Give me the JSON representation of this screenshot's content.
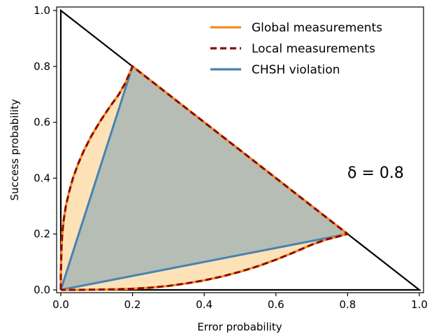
{
  "chart_data": {
    "type": "line",
    "xlabel": "Error probability",
    "ylabel": "Success probability",
    "xlim": [
      0,
      1
    ],
    "ylim": [
      0,
      1
    ],
    "xticks": [
      "0.0",
      "0.2",
      "0.4",
      "0.6",
      "0.8",
      "1.0"
    ],
    "yticks": [
      "0.0",
      "0.2",
      "0.4",
      "0.6",
      "0.8",
      "1.0"
    ],
    "grid": false,
    "legend_position": "top-right",
    "annotation": "δ = 0.8",
    "boundary_triangle": {
      "x": [
        0,
        1,
        0,
        0
      ],
      "y": [
        0,
        0,
        1,
        0
      ]
    },
    "series": [
      {
        "name": "Global measurements",
        "style": "solid",
        "color": "#f28e1c",
        "fill": "#fde2b8",
        "points": [
          [
            0.0,
            0.0
          ],
          [
            0.0,
            0.05
          ],
          [
            0.001,
            0.1
          ],
          [
            0.002,
            0.15
          ],
          [
            0.004,
            0.2
          ],
          [
            0.008,
            0.25
          ],
          [
            0.014,
            0.3
          ],
          [
            0.023,
            0.35
          ],
          [
            0.034,
            0.4
          ],
          [
            0.048,
            0.45
          ],
          [
            0.065,
            0.5
          ],
          [
            0.085,
            0.55
          ],
          [
            0.108,
            0.6
          ],
          [
            0.134,
            0.65
          ],
          [
            0.162,
            0.7
          ],
          [
            0.18,
            0.74
          ],
          [
            0.2,
            0.8
          ],
          [
            0.8,
            0.2
          ],
          [
            0.74,
            0.18
          ],
          [
            0.7,
            0.162
          ],
          [
            0.65,
            0.134
          ],
          [
            0.6,
            0.108
          ],
          [
            0.55,
            0.085
          ],
          [
            0.5,
            0.065
          ],
          [
            0.45,
            0.048
          ],
          [
            0.4,
            0.034
          ],
          [
            0.35,
            0.023
          ],
          [
            0.3,
            0.014
          ],
          [
            0.25,
            0.008
          ],
          [
            0.2,
            0.004
          ],
          [
            0.15,
            0.002
          ],
          [
            0.1,
            0.001
          ],
          [
            0.05,
            0.0
          ],
          [
            0.0,
            0.0
          ]
        ]
      },
      {
        "name": "Local measurements",
        "style": "dashed",
        "color": "#8b0a0a",
        "points": [
          [
            0.0,
            0.0
          ],
          [
            0.0,
            0.05
          ],
          [
            0.001,
            0.1
          ],
          [
            0.002,
            0.15
          ],
          [
            0.004,
            0.2
          ],
          [
            0.008,
            0.25
          ],
          [
            0.014,
            0.3
          ],
          [
            0.023,
            0.35
          ],
          [
            0.034,
            0.4
          ],
          [
            0.048,
            0.45
          ],
          [
            0.065,
            0.5
          ],
          [
            0.085,
            0.55
          ],
          [
            0.108,
            0.6
          ],
          [
            0.134,
            0.65
          ],
          [
            0.162,
            0.7
          ],
          [
            0.18,
            0.74
          ],
          [
            0.2,
            0.8
          ],
          [
            0.8,
            0.2
          ],
          [
            0.74,
            0.18
          ],
          [
            0.7,
            0.162
          ],
          [
            0.65,
            0.134
          ],
          [
            0.6,
            0.108
          ],
          [
            0.55,
            0.085
          ],
          [
            0.5,
            0.065
          ],
          [
            0.45,
            0.048
          ],
          [
            0.4,
            0.034
          ],
          [
            0.35,
            0.023
          ],
          [
            0.3,
            0.014
          ],
          [
            0.25,
            0.008
          ],
          [
            0.2,
            0.004
          ],
          [
            0.15,
            0.002
          ],
          [
            0.1,
            0.001
          ],
          [
            0.05,
            0.0
          ],
          [
            0.0,
            0.0
          ]
        ]
      },
      {
        "name": "CHSH violation",
        "style": "solid",
        "color": "#4682b4",
        "fill": "#b5bdb4",
        "points": [
          [
            0.0,
            0.0
          ],
          [
            0.2,
            0.8
          ],
          [
            0.8,
            0.2
          ],
          [
            0.0,
            0.0
          ]
        ]
      }
    ]
  }
}
